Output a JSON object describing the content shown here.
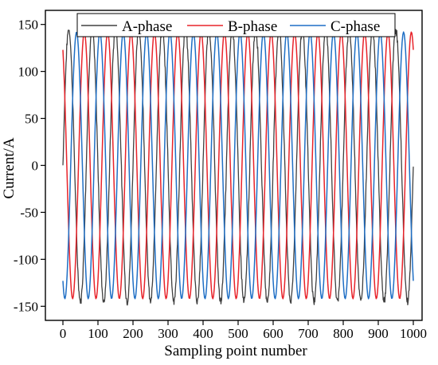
{
  "chart_data": {
    "type": "line",
    "title": "",
    "xlabel": "Sampling point number",
    "ylabel": "Current/A",
    "xlim": [
      -50,
      1025
    ],
    "ylim": [
      -165,
      165
    ],
    "xticks": [
      0,
      100,
      200,
      300,
      400,
      500,
      600,
      700,
      800,
      900,
      1000
    ],
    "yticks": [
      -150,
      -100,
      -50,
      0,
      50,
      100,
      150
    ],
    "grid": false,
    "legend_position": "top",
    "cycles_shown": 15,
    "series": [
      {
        "name": "A-phase",
        "color": "#404040",
        "amplitude": 145,
        "phase_deg": 0,
        "noisy": true
      },
      {
        "name": "B-phase",
        "color": "#e8232a",
        "amplitude": 142,
        "phase_deg": 120,
        "noisy": false
      },
      {
        "name": "C-phase",
        "color": "#1f6fc5",
        "amplitude": 142,
        "phase_deg": -120,
        "noisy": false
      }
    ]
  }
}
